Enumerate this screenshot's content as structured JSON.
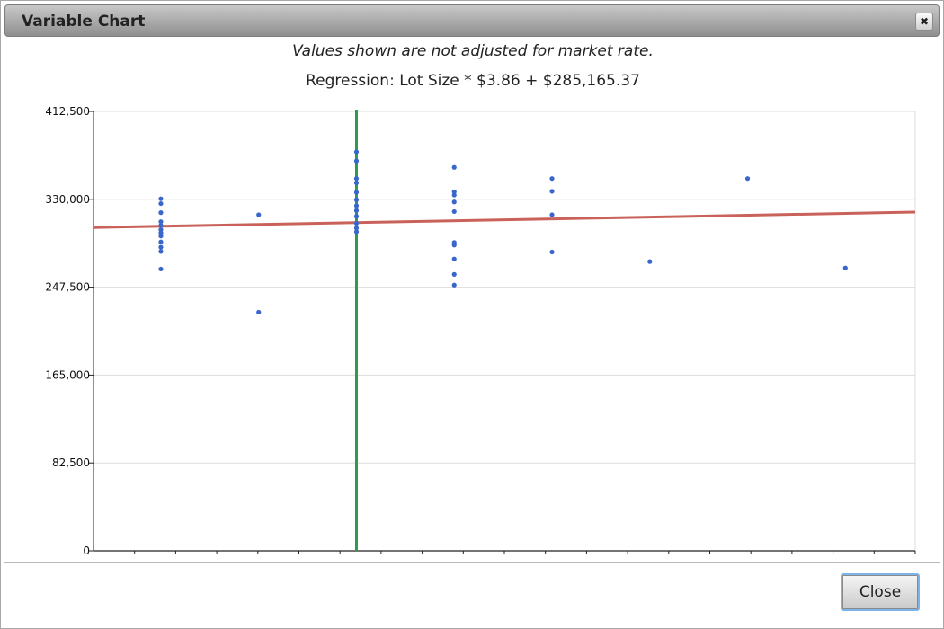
{
  "window": {
    "title": "Variable Chart"
  },
  "note": "Values shown are not adjusted for market rate.",
  "regression_label": "Regression: Lot Size * $3.86 + $285,165.37",
  "buttons": {
    "close_label": "Close"
  },
  "icons": {
    "close": "close-icon"
  },
  "colors": {
    "points": "#3a66cc",
    "regression": "#c9625a",
    "marker": "#2e9b4e",
    "grid": "#dddddd"
  },
  "chart_data": {
    "type": "scatter",
    "title": "",
    "xlabel": "",
    "ylabel": "",
    "xlim": [
      0,
      20
    ],
    "ylim": [
      0,
      412500
    ],
    "yticks": [
      0,
      82500,
      165000,
      247500,
      330000,
      412500
    ],
    "ytick_labels": [
      "0",
      "82,500",
      "165,000",
      "247,500",
      "330,000",
      "412,500"
    ],
    "xticks": [
      1,
      2,
      3,
      4,
      5,
      6,
      7,
      8,
      9,
      10,
      11,
      12,
      13,
      14,
      15,
      16,
      17,
      18,
      19,
      20
    ],
    "grid": true,
    "regression_line": {
      "x": [
        0,
        20
      ],
      "y": [
        303500,
        318000
      ]
    },
    "marker_line_x": 6.4,
    "points": [
      {
        "x": 1.64,
        "y": 330500
      },
      {
        "x": 1.64,
        "y": 326000
      },
      {
        "x": 1.64,
        "y": 317500
      },
      {
        "x": 1.64,
        "y": 309000
      },
      {
        "x": 1.64,
        "y": 305500
      },
      {
        "x": 1.64,
        "y": 301500
      },
      {
        "x": 1.64,
        "y": 298500
      },
      {
        "x": 1.64,
        "y": 295500
      },
      {
        "x": 1.64,
        "y": 290000
      },
      {
        "x": 1.64,
        "y": 285000
      },
      {
        "x": 1.64,
        "y": 281000
      },
      {
        "x": 1.64,
        "y": 264500
      },
      {
        "x": 4.02,
        "y": 315500
      },
      {
        "x": 4.02,
        "y": 224000
      },
      {
        "x": 6.4,
        "y": 374500
      },
      {
        "x": 6.4,
        "y": 366000
      },
      {
        "x": 6.4,
        "y": 349500
      },
      {
        "x": 6.4,
        "y": 345500
      },
      {
        "x": 6.4,
        "y": 336500
      },
      {
        "x": 6.4,
        "y": 329500
      },
      {
        "x": 6.4,
        "y": 324000
      },
      {
        "x": 6.4,
        "y": 319500
      },
      {
        "x": 6.4,
        "y": 314000
      },
      {
        "x": 6.4,
        "y": 307500
      },
      {
        "x": 6.4,
        "y": 303000
      },
      {
        "x": 6.4,
        "y": 299500
      },
      {
        "x": 8.78,
        "y": 360000
      },
      {
        "x": 8.78,
        "y": 337000
      },
      {
        "x": 8.78,
        "y": 334000
      },
      {
        "x": 8.78,
        "y": 327500
      },
      {
        "x": 8.78,
        "y": 318500
      },
      {
        "x": 8.78,
        "y": 289500
      },
      {
        "x": 8.78,
        "y": 287000
      },
      {
        "x": 8.78,
        "y": 274000
      },
      {
        "x": 8.78,
        "y": 259500
      },
      {
        "x": 8.78,
        "y": 249500
      },
      {
        "x": 11.16,
        "y": 349500
      },
      {
        "x": 11.16,
        "y": 337500
      },
      {
        "x": 11.16,
        "y": 315500
      },
      {
        "x": 11.16,
        "y": 280500
      },
      {
        "x": 13.54,
        "y": 271500
      },
      {
        "x": 15.92,
        "y": 349500
      },
      {
        "x": 18.3,
        "y": 265500
      }
    ]
  }
}
